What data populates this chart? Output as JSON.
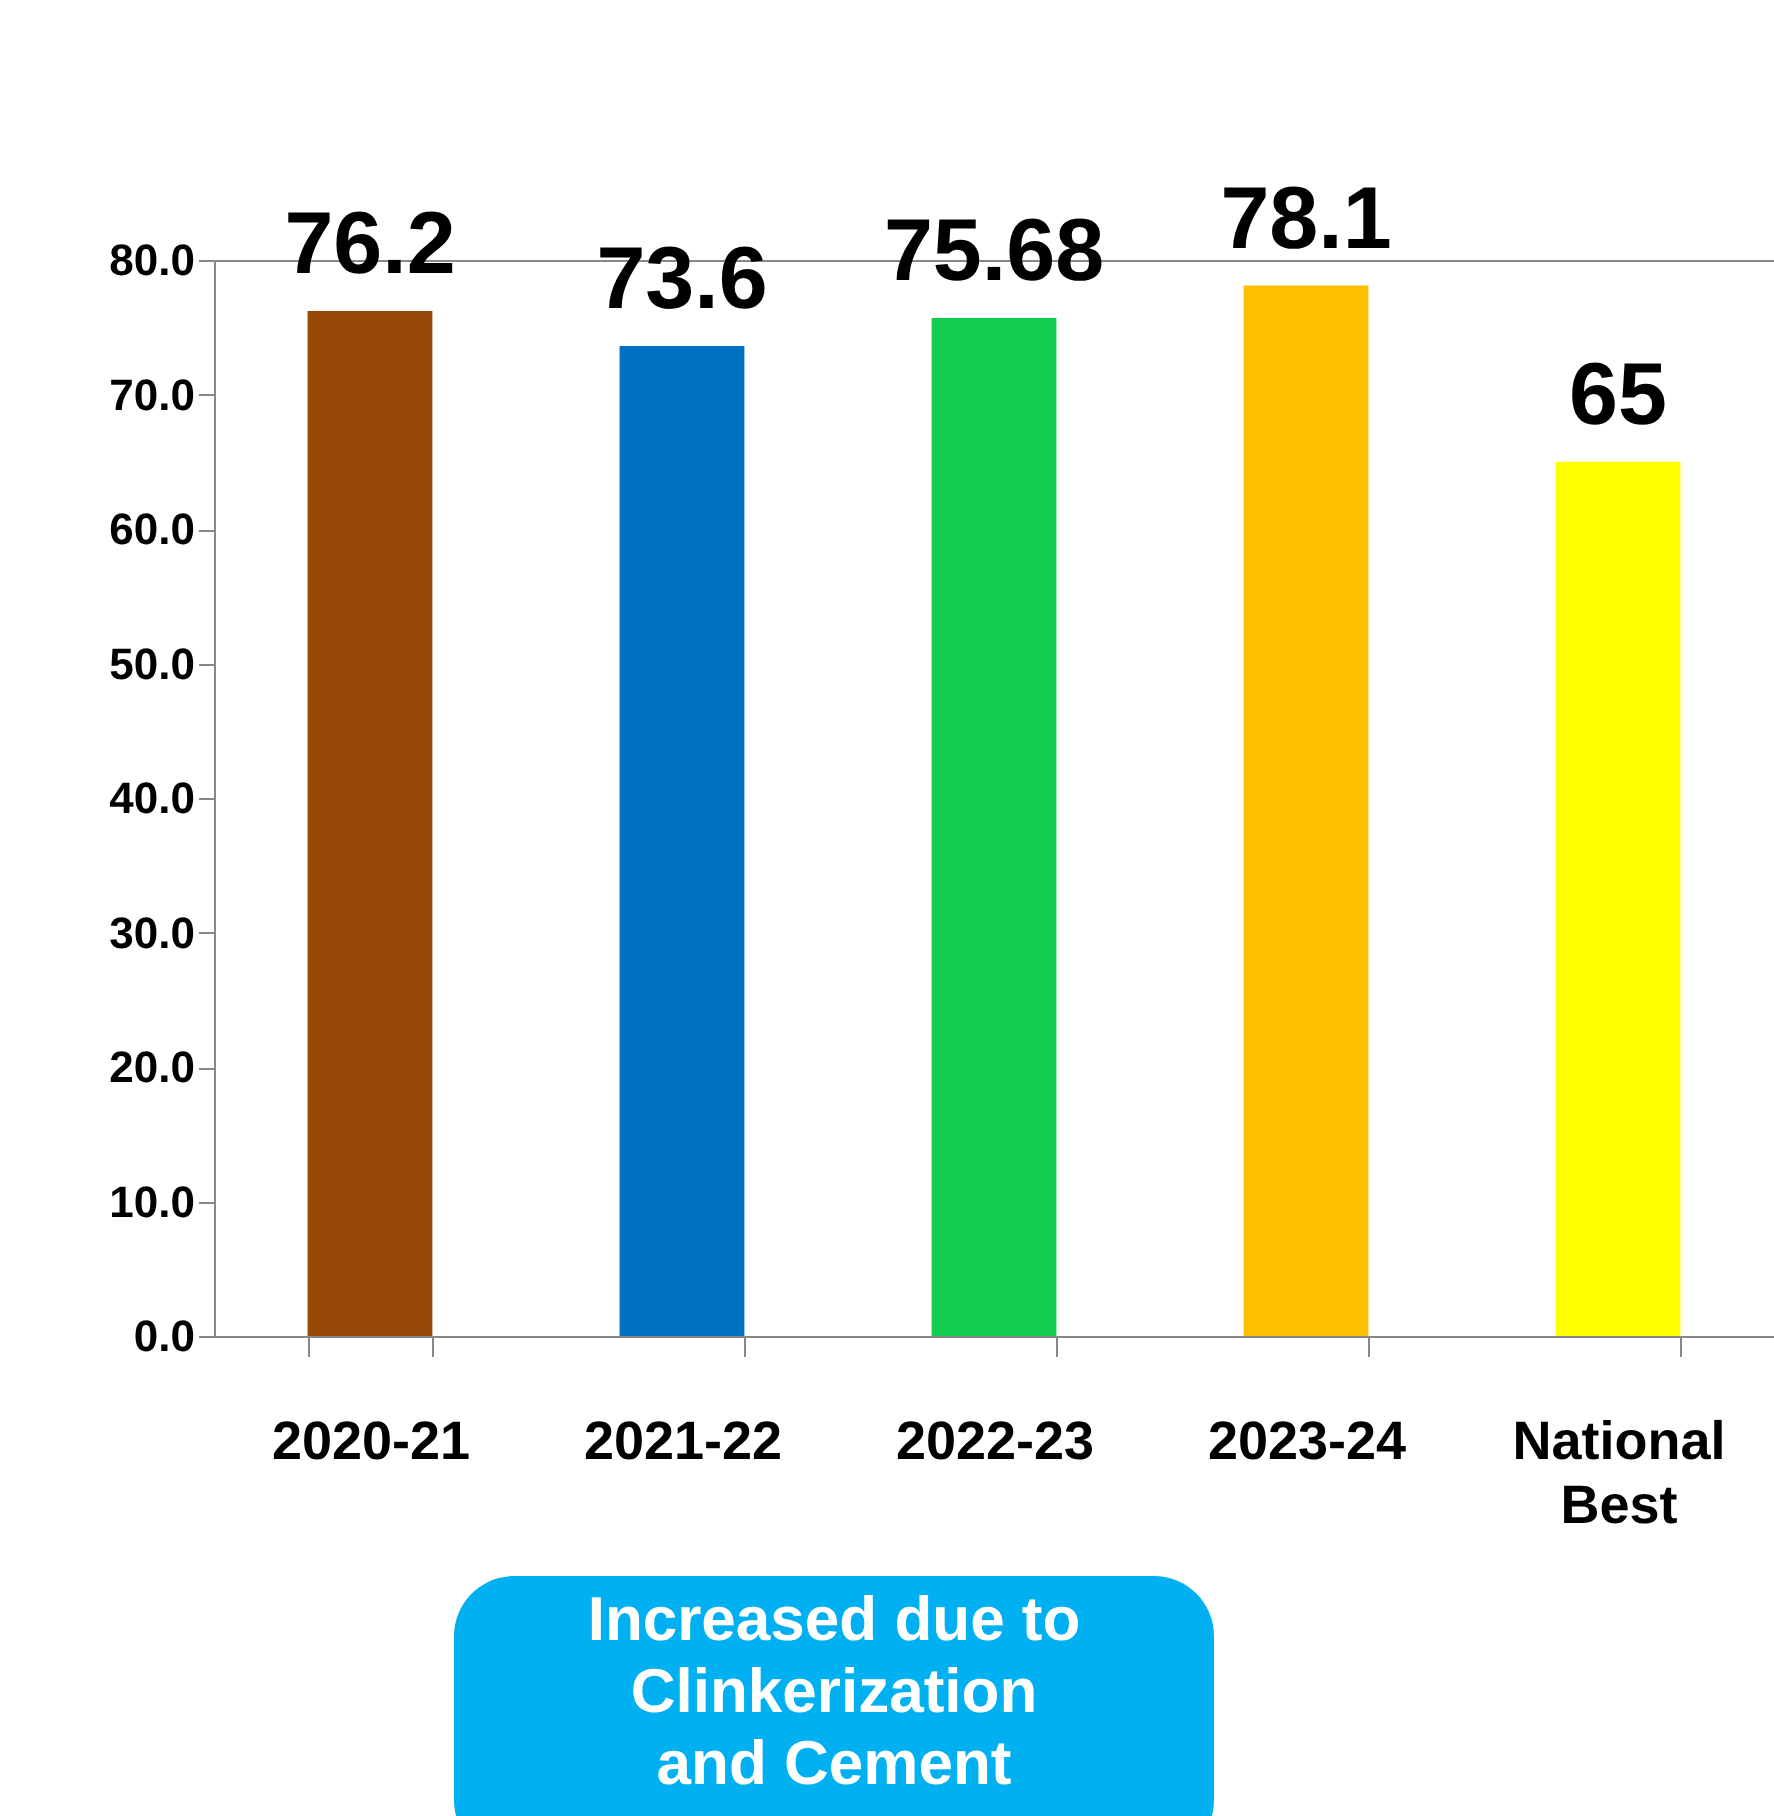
{
  "chart_data": {
    "type": "bar",
    "categories": [
      "2020-21",
      "2021-22",
      "2022-23",
      "2023-24",
      "National Best"
    ],
    "values": [
      76.2,
      73.6,
      75.68,
      78.1,
      65
    ],
    "colors": [
      "#974706",
      "#0070c0",
      "#14cc50",
      "#ffc000",
      "#ffff00"
    ],
    "ylim": [
      0,
      80
    ],
    "yticks": [
      {
        "value": 0,
        "label": "0.0"
      },
      {
        "value": 10,
        "label": "10.0"
      },
      {
        "value": 20,
        "label": "20.0"
      },
      {
        "value": 30,
        "label": "30.0"
      },
      {
        "value": 40,
        "label": "40.0"
      },
      {
        "value": 50,
        "label": "50.0"
      },
      {
        "value": 60,
        "label": "60.0"
      },
      {
        "value": 70,
        "label": "70.0"
      },
      {
        "value": 80,
        "label": "80.0"
      }
    ],
    "data_labels": true,
    "grid": false,
    "annotations": [
      "Increased due to Clinkerization and Cement"
    ]
  }
}
